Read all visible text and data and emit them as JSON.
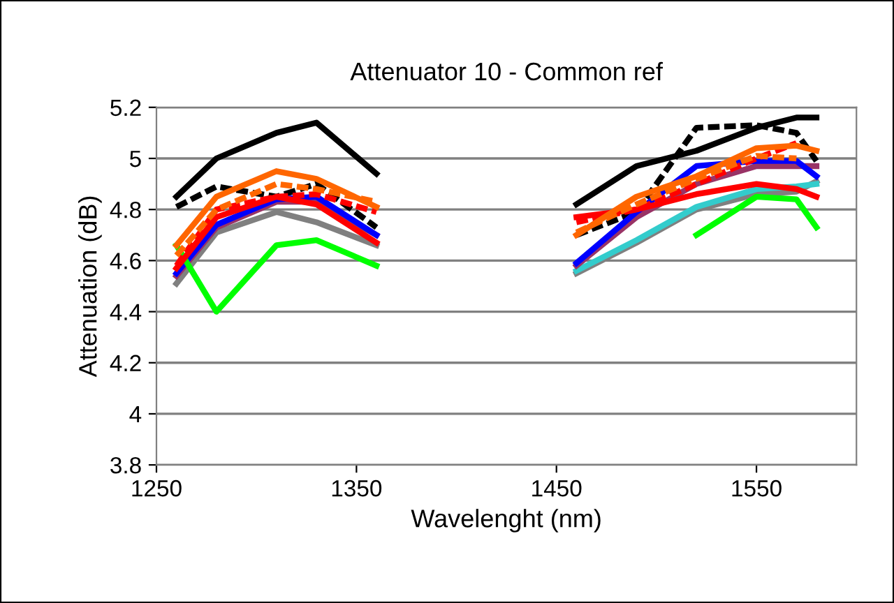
{
  "chart_data": {
    "type": "line",
    "title": "Attenuator 10 - Common ref",
    "xlabel": "Wavelenght (nm)",
    "ylabel": "Attenuation (dB)",
    "xlim": [
      1250,
      1600
    ],
    "xticks": [
      1250,
      1350,
      1450,
      1550
    ],
    "ylim": [
      3.8,
      5.2
    ],
    "yticks": [
      3.8,
      4,
      4.2,
      4.4,
      4.6,
      4.8,
      5,
      5.2
    ],
    "grid": "y",
    "legend": false,
    "marker": "none",
    "series": [
      {
        "color": "#000000",
        "x": [
          1260,
          1280,
          1310,
          1330,
          1360
        ],
        "values": [
          4.85,
          5.0,
          5.1,
          5.14,
          4.94
        ]
      },
      {
        "color": "#000000",
        "x": [
          1460,
          1490,
          1520,
          1550,
          1570,
          1580
        ],
        "values": [
          4.82,
          4.97,
          5.03,
          5.12,
          5.16,
          5.16
        ]
      },
      {
        "color": "#000000",
        "line_style": "dashed",
        "x": [
          1260,
          1280,
          1310,
          1330,
          1360
        ],
        "values": [
          4.81,
          4.89,
          4.85,
          4.9,
          4.73
        ]
      },
      {
        "color": "#000000",
        "line_style": "dashed",
        "x": [
          1460,
          1490,
          1520,
          1550,
          1570,
          1580
        ],
        "values": [
          4.7,
          4.79,
          5.12,
          5.13,
          5.1,
          4.99
        ]
      },
      {
        "color": "#808080",
        "x": [
          1260,
          1280,
          1310,
          1330,
          1360
        ],
        "values": [
          4.51,
          4.71,
          4.79,
          4.75,
          4.66
        ]
      },
      {
        "color": "#808080",
        "x": [
          1460,
          1490,
          1520,
          1550,
          1570,
          1580
        ],
        "values": [
          4.55,
          4.67,
          4.8,
          4.86,
          4.87,
          4.91
        ]
      },
      {
        "color": "#33cccc",
        "x": [
          1460,
          1490,
          1520,
          1550,
          1570,
          1580
        ],
        "values": [
          4.56,
          4.68,
          4.81,
          4.88,
          4.89,
          4.9
        ]
      },
      {
        "color": "#993366",
        "x": [
          1260,
          1280,
          1310,
          1330,
          1360
        ],
        "values": [
          4.54,
          4.73,
          4.83,
          4.83,
          4.7
        ]
      },
      {
        "color": "#993366",
        "x": [
          1460,
          1490,
          1520,
          1550,
          1570,
          1580
        ],
        "values": [
          4.58,
          4.77,
          4.9,
          4.97,
          4.97,
          4.97
        ]
      },
      {
        "color": "#0000ff",
        "x": [
          1260,
          1280,
          1310,
          1330,
          1360
        ],
        "values": [
          4.55,
          4.74,
          4.84,
          4.85,
          4.7
        ]
      },
      {
        "color": "#0000ff",
        "x": [
          1460,
          1490,
          1520,
          1550,
          1570,
          1580
        ],
        "values": [
          4.59,
          4.79,
          4.97,
          4.99,
          4.99,
          4.93
        ]
      },
      {
        "color": "#00ff00",
        "x": [
          1260,
          1280,
          1310,
          1330,
          1360
        ],
        "values": [
          4.66,
          4.4,
          4.66,
          4.68,
          4.58
        ]
      },
      {
        "color": "#00ff00",
        "x": [
          1520,
          1550,
          1570,
          1580
        ],
        "values": [
          4.7,
          4.85,
          4.84,
          4.73
        ]
      },
      {
        "color": "#ff0000",
        "line_style": "dashed",
        "x": [
          1260,
          1280,
          1310,
          1330,
          1360
        ],
        "values": [
          4.58,
          4.8,
          4.85,
          4.86,
          4.79
        ]
      },
      {
        "color": "#ff0000",
        "line_style": "dashed",
        "x": [
          1460,
          1490,
          1520,
          1550,
          1570
        ],
        "values": [
          4.75,
          4.8,
          4.9,
          5.0,
          5.06
        ]
      },
      {
        "color": "#ff0000",
        "x": [
          1260,
          1280,
          1310,
          1330,
          1360
        ],
        "values": [
          4.57,
          4.77,
          4.85,
          4.82,
          4.67
        ]
      },
      {
        "color": "#ff0000",
        "x": [
          1460,
          1490,
          1520,
          1550,
          1570,
          1580
        ],
        "values": [
          4.77,
          4.8,
          4.86,
          4.9,
          4.88,
          4.85
        ]
      },
      {
        "color": "#ff6600",
        "line_style": "dashed",
        "x": [
          1260,
          1280,
          1310,
          1330,
          1360
        ],
        "values": [
          4.62,
          4.8,
          4.9,
          4.88,
          4.83
        ]
      },
      {
        "color": "#ff6600",
        "line_style": "dashed",
        "x": [
          1460,
          1490,
          1520,
          1550,
          1570
        ],
        "values": [
          4.71,
          4.82,
          4.92,
          5.01,
          5.0
        ]
      },
      {
        "color": "#ff6600",
        "x": [
          1260,
          1280,
          1310,
          1330,
          1360
        ],
        "values": [
          4.66,
          4.85,
          4.95,
          4.92,
          4.81
        ]
      },
      {
        "color": "#ff6600",
        "x": [
          1460,
          1490,
          1520,
          1550,
          1570,
          1580
        ],
        "values": [
          4.7,
          4.85,
          4.93,
          5.04,
          5.05,
          5.03
        ]
      }
    ]
  }
}
